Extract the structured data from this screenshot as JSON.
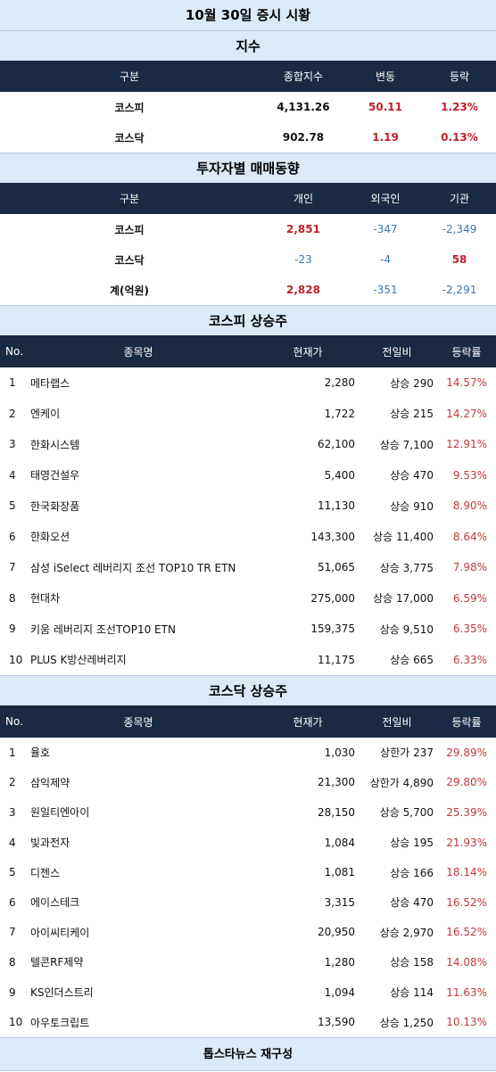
{
  "title": "10월 30일 증시 시황",
  "index_section": {
    "title": "지수",
    "headers": [
      "구분",
      "종합지수",
      "변동",
      "등락"
    ],
    "rows": [
      {
        "name": "코스피",
        "value": "4,131.26",
        "change": "50.11",
        "rate": "1.23%"
      },
      {
        "name": "코스닥",
        "value": "902.78",
        "change": "1.19",
        "rate": "0.13%"
      }
    ]
  },
  "investor_section": {
    "title": "투자자별 매매동향",
    "headers": [
      "구분",
      "개인",
      "외국인",
      "기관"
    ],
    "rows": [
      {
        "name": "코스피",
        "individual": "2,851",
        "foreign": "-347",
        "institution": "-2,349"
      },
      {
        "name": "코스닥",
        "individual": "-23",
        "foreign": "-4",
        "institution": "58"
      },
      {
        "name": "계(억원)",
        "individual": "2,828",
        "foreign": "-351",
        "institution": "-2,291"
      }
    ]
  },
  "kospi_section": {
    "title": "코스피 상승주",
    "headers": [
      "No.",
      "종목명",
      "현재가",
      "전일비",
      "등락률"
    ],
    "rows": [
      {
        "no": "1",
        "name": "메타랩스",
        "price": "2,280",
        "diff": "상승 290",
        "rate": "14.57%"
      },
      {
        "no": "2",
        "name": "엔케이",
        "price": "1,722",
        "diff": "상승 215",
        "rate": "14.27%"
      },
      {
        "no": "3",
        "name": "한화시스템",
        "price": "62,100",
        "diff": "상승 7,100",
        "rate": "12.91%"
      },
      {
        "no": "4",
        "name": "태영건설우",
        "price": "5,400",
        "diff": "상승 470",
        "rate": "9.53%"
      },
      {
        "no": "5",
        "name": "한국화장품",
        "price": "11,130",
        "diff": "상승 910",
        "rate": "8.90%"
      },
      {
        "no": "6",
        "name": "한화오션",
        "price": "143,300",
        "diff": "상승 11,400",
        "rate": "8.64%"
      },
      {
        "no": "7",
        "name": "삼성 iSelect 레버리지 조선 TOP10 TR ETN",
        "price": "51,065",
        "diff": "상승 3,775",
        "rate": "7.98%"
      },
      {
        "no": "8",
        "name": "현대차",
        "price": "275,000",
        "diff": "상승 17,000",
        "rate": "6.59%"
      },
      {
        "no": "9",
        "name": "키움 레버리지 조선TOP10 ETN",
        "price": "159,375",
        "diff": "상승 9,510",
        "rate": "6.35%"
      },
      {
        "no": "10",
        "name": "PLUS K방산레버리지",
        "price": "11,175",
        "diff": "상승 665",
        "rate": "6.33%"
      }
    ]
  },
  "kosdaq_section": {
    "title": "코스닥 상승주",
    "headers": [
      "No.",
      "종목명",
      "현재가",
      "전일비",
      "등락률"
    ],
    "rows": [
      {
        "no": "1",
        "name": "율호",
        "price": "1,030",
        "diff": "상한가 237",
        "rate": "29.89%"
      },
      {
        "no": "2",
        "name": "삼익제약",
        "price": "21,300",
        "diff": "상한가 4,890",
        "rate": "29.80%"
      },
      {
        "no": "3",
        "name": "원일티엔아이",
        "price": "28,150",
        "diff": "상승 5,700",
        "rate": "25.39%"
      },
      {
        "no": "4",
        "name": "빛과전자",
        "price": "1,084",
        "diff": "상승 195",
        "rate": "21.93%"
      },
      {
        "no": "5",
        "name": "디젠스",
        "price": "1,081",
        "diff": "상승 166",
        "rate": "18.14%"
      },
      {
        "no": "6",
        "name": "에이스테크",
        "price": "3,315",
        "diff": "상승 470",
        "rate": "16.52%"
      },
      {
        "no": "7",
        "name": "아이씨티케이",
        "price": "20,950",
        "diff": "상승 2,970",
        "rate": "16.52%"
      },
      {
        "no": "8",
        "name": "텔콘RF제약",
        "price": "1,280",
        "diff": "상승 158",
        "rate": "14.08%"
      },
      {
        "no": "9",
        "name": "KS인더스트리",
        "price": "1,094",
        "diff": "상승 114",
        "rate": "11.63%"
      },
      {
        "no": "10",
        "name": "아우토크립트",
        "price": "13,590",
        "diff": "상승 1,250",
        "rate": "10.13%"
      }
    ]
  },
  "footer": "톱스타뉴스 재구성"
}
